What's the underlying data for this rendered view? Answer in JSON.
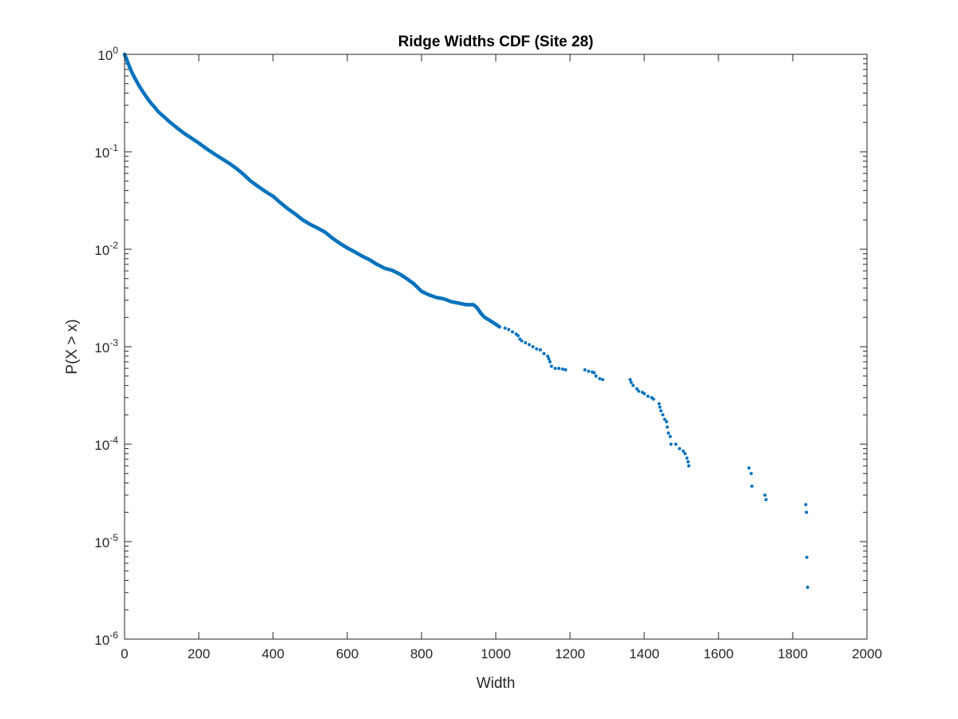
{
  "chart_data": {
    "type": "scatter",
    "title": "Ridge Widths CDF (Site 28)",
    "xlabel": "Width",
    "ylabel": "P(X > x)",
    "xlim": [
      0,
      2000
    ],
    "ylim": [
      1e-06,
      1
    ],
    "yscale": "log",
    "grid": false,
    "legend": "none",
    "marker_color": "#0072BD",
    "x_ticks": [
      {
        "value": 0,
        "label": "0"
      },
      {
        "value": 200,
        "label": "200"
      },
      {
        "value": 400,
        "label": "400"
      },
      {
        "value": 600,
        "label": "600"
      },
      {
        "value": 800,
        "label": "800"
      },
      {
        "value": 1000,
        "label": "1000"
      },
      {
        "value": 1200,
        "label": "1200"
      },
      {
        "value": 1400,
        "label": "1400"
      },
      {
        "value": 1600,
        "label": "1600"
      },
      {
        "value": 1800,
        "label": "1800"
      },
      {
        "value": 2000,
        "label": "2000"
      }
    ],
    "y_ticks": [
      {
        "value": 1,
        "base": "10",
        "exponent": "0"
      },
      {
        "value": 0.1,
        "base": "10",
        "exponent": "-1"
      },
      {
        "value": 0.01,
        "base": "10",
        "exponent": "-2"
      },
      {
        "value": 0.001,
        "base": "10",
        "exponent": "-3"
      },
      {
        "value": 0.0001,
        "base": "10",
        "exponent": "-4"
      },
      {
        "value": 1e-05,
        "base": "10",
        "exponent": "-5"
      },
      {
        "value": 1e-06,
        "base": "10",
        "exponent": "-6"
      }
    ],
    "series": [
      {
        "curve": [
          [
            0,
            1.0
          ],
          [
            5,
            0.9
          ],
          [
            10,
            0.8
          ],
          [
            20,
            0.65
          ],
          [
            30,
            0.55
          ],
          [
            40,
            0.47
          ],
          [
            50,
            0.41
          ],
          [
            60,
            0.36
          ],
          [
            70,
            0.32
          ],
          [
            80,
            0.29
          ],
          [
            90,
            0.26
          ],
          [
            100,
            0.24
          ],
          [
            120,
            0.205
          ],
          [
            140,
            0.178
          ],
          [
            160,
            0.155
          ],
          [
            180,
            0.138
          ],
          [
            200,
            0.123
          ],
          [
            220,
            0.108
          ],
          [
            240,
            0.096
          ],
          [
            260,
            0.086
          ],
          [
            280,
            0.077
          ],
          [
            300,
            0.068
          ],
          [
            320,
            0.059
          ],
          [
            340,
            0.05
          ],
          [
            360,
            0.044
          ],
          [
            380,
            0.039
          ],
          [
            400,
            0.035
          ],
          [
            420,
            0.03
          ],
          [
            440,
            0.026
          ],
          [
            460,
            0.023
          ],
          [
            480,
            0.02
          ],
          [
            500,
            0.018
          ],
          [
            520,
            0.0165
          ],
          [
            540,
            0.015
          ],
          [
            560,
            0.013
          ],
          [
            580,
            0.0115
          ],
          [
            600,
            0.0103
          ],
          [
            620,
            0.0094
          ],
          [
            640,
            0.0085
          ],
          [
            660,
            0.0078
          ],
          [
            680,
            0.007
          ],
          [
            700,
            0.0064
          ],
          [
            720,
            0.0061
          ],
          [
            740,
            0.0056
          ],
          [
            760,
            0.005
          ],
          [
            780,
            0.0044
          ],
          [
            800,
            0.0037
          ],
          [
            820,
            0.0034
          ],
          [
            840,
            0.0032
          ],
          [
            860,
            0.0031
          ],
          [
            880,
            0.0029
          ],
          [
            900,
            0.0028
          ],
          [
            920,
            0.0027
          ],
          [
            940,
            0.0027
          ],
          [
            950,
            0.0025
          ],
          [
            960,
            0.0022
          ],
          [
            970,
            0.002
          ],
          [
            980,
            0.0019
          ],
          [
            1000,
            0.0017
          ],
          [
            1010,
            0.0016
          ]
        ],
        "points": [
          [
            1025,
            0.00155
          ],
          [
            1035,
            0.0015
          ],
          [
            1045,
            0.00142
          ],
          [
            1055,
            0.00135
          ],
          [
            1060,
            0.0013
          ],
          [
            1065,
            0.0012
          ],
          [
            1070,
            0.00115
          ],
          [
            1080,
            0.0011
          ],
          [
            1090,
            0.00105
          ],
          [
            1100,
            0.001
          ],
          [
            1110,
            0.00095
          ],
          [
            1120,
            0.00093
          ],
          [
            1130,
            0.00085
          ],
          [
            1140,
            0.0008
          ],
          [
            1143,
            0.00075
          ],
          [
            1146,
            0.0007
          ],
          [
            1150,
            0.00063
          ],
          [
            1160,
            0.0006
          ],
          [
            1170,
            0.0006
          ],
          [
            1180,
            0.00059
          ],
          [
            1188,
            0.00058
          ],
          [
            1240,
            0.00058
          ],
          [
            1250,
            0.00056
          ],
          [
            1260,
            0.00055
          ],
          [
            1265,
            0.00054
          ],
          [
            1270,
            0.0005
          ],
          [
            1280,
            0.00047
          ],
          [
            1288,
            0.00046
          ],
          [
            1362,
            0.00046
          ],
          [
            1365,
            0.00043
          ],
          [
            1370,
            0.0004
          ],
          [
            1380,
            0.00037
          ],
          [
            1385,
            0.00035
          ],
          [
            1395,
            0.00034
          ],
          [
            1400,
            0.00033
          ],
          [
            1410,
            0.00031
          ],
          [
            1420,
            0.0003
          ],
          [
            1425,
            0.00029
          ],
          [
            1440,
            0.00026
          ],
          [
            1442,
            0.00024
          ],
          [
            1445,
            0.00022
          ],
          [
            1450,
            0.0002
          ],
          [
            1455,
            0.00018
          ],
          [
            1460,
            0.00017
          ],
          [
            1462,
            0.00015
          ],
          [
            1465,
            0.00013
          ],
          [
            1470,
            0.00012
          ],
          [
            1472,
            0.0001
          ],
          [
            1485,
            0.0001
          ],
          [
            1495,
            9e-05
          ],
          [
            1505,
            8.5e-05
          ],
          [
            1510,
            8e-05
          ],
          [
            1515,
            7.2e-05
          ],
          [
            1518,
            6.6e-05
          ],
          [
            1520,
            6e-05
          ],
          [
            1682,
            5.7e-05
          ],
          [
            1688,
            5e-05
          ],
          [
            1690,
            3.7e-05
          ],
          [
            1725,
            3e-05
          ],
          [
            1728,
            2.7e-05
          ],
          [
            1835,
            2.4e-05
          ],
          [
            1837,
            2e-05
          ],
          [
            1838,
            6.9e-06
          ],
          [
            1840,
            3.4e-06
          ]
        ]
      }
    ]
  }
}
